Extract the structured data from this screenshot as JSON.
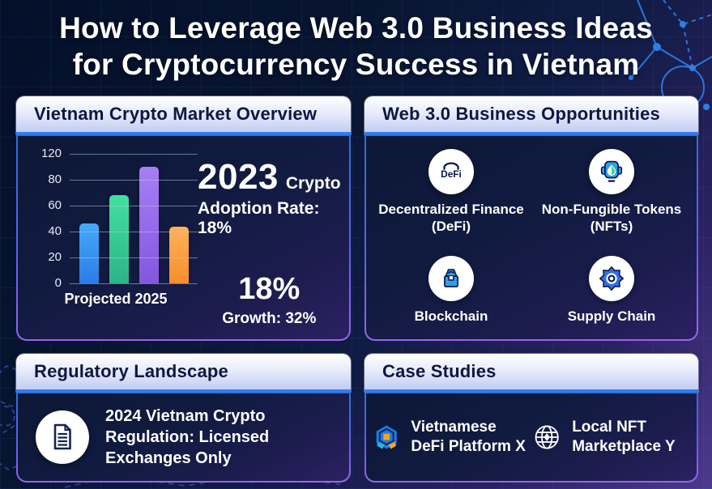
{
  "title": {
    "line1": "How to Leverage Web 3.0 Business Ideas",
    "line2": "for Cryptocurrency Success in Vietnam"
  },
  "market_panel": {
    "header": "Vietnam Crypto Market Overview",
    "stat1_big": "2023",
    "stat1_side": "Crypto",
    "stat1_sub": "Adoption Rate: 18%",
    "stat2_big": "18%",
    "stat2_sub": "Growth: 32%"
  },
  "web3_panel": {
    "header": "Web 3.0 Business Opportunities",
    "items": [
      {
        "icon": "defi-icon",
        "label": "Decentralized Finance (DeFi)"
      },
      {
        "icon": "nft-icon",
        "label": "Non-Fungible Tokens (NFTs)"
      },
      {
        "icon": "blockchain-icon",
        "label": "Blockchain"
      },
      {
        "icon": "supply-chain-icon",
        "label": "Supply Chain"
      }
    ]
  },
  "regulatory_panel": {
    "header": "Regulatory Landscape",
    "icon": "document-icon",
    "text": "2024 Vietnam Crypto Regulation: Licensed Exchanges Only"
  },
  "cases_panel": {
    "header": "Case Studies",
    "items": [
      {
        "icon": "defi-platform-logo",
        "label": "Vietnamese DeFi Platform X"
      },
      {
        "icon": "globe-icon",
        "label": "Local NFT Marketplace Y"
      }
    ]
  },
  "chart_data": {
    "type": "bar",
    "values": [
      46,
      68,
      100,
      44
    ],
    "bar_colors": [
      [
        "#45aaf8",
        "#2b7ce6"
      ],
      [
        "#41e0a1",
        "#2cb488"
      ],
      [
        "#a87ef5",
        "#8457dd"
      ],
      [
        "#ffb259",
        "#f68e2e"
      ]
    ],
    "yticks_top_to_bottom": [
      120,
      80,
      60,
      40,
      20,
      0
    ],
    "xlabel": "Projected 2025",
    "title": "",
    "ylabel": "",
    "grid": true,
    "legend": false
  },
  "colors": {
    "accent_blue": "#2f7ff0",
    "accent_purple": "#9a63f0",
    "header_text": "#0d1742",
    "body_text": "#ffffff",
    "background_top": "#04102a",
    "background_bottom": "#4c3a8c"
  }
}
